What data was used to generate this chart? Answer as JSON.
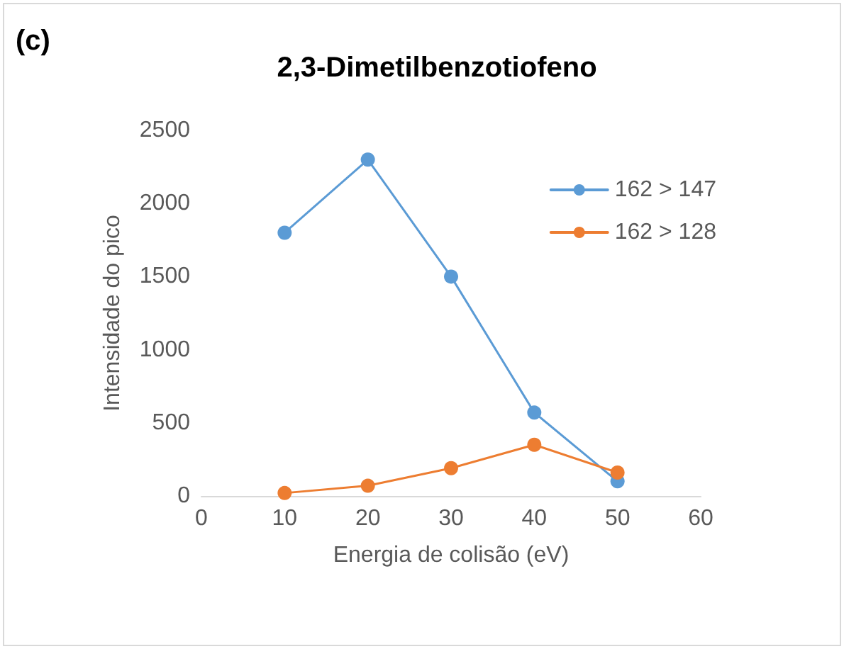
{
  "chart_data": {
    "type": "line",
    "title": "2,3-Dimetilbenzotiofeno",
    "xlabel": "Energia de colisão (eV)",
    "ylabel": "Intensidade do pico",
    "annotations": [
      "(c)"
    ],
    "x": [
      10,
      20,
      30,
      40,
      50
    ],
    "series": [
      {
        "name": "162 > 147",
        "color": "#5b9bd5",
        "values": [
          1800,
          2300,
          1500,
          570,
          100
        ]
      },
      {
        "name": "162 > 128",
        "color": "#ed7d31",
        "values": [
          20,
          70,
          190,
          350,
          160
        ]
      }
    ],
    "xlim": [
      0,
      60
    ],
    "xticks": [
      0,
      10,
      20,
      30,
      40,
      50,
      60
    ],
    "ylim": [
      0,
      2500
    ],
    "yticks": [
      0,
      500,
      1000,
      1500,
      2000,
      2500
    ],
    "grid": false,
    "legend": "top right",
    "marker": "circle",
    "line_style": "solid"
  }
}
